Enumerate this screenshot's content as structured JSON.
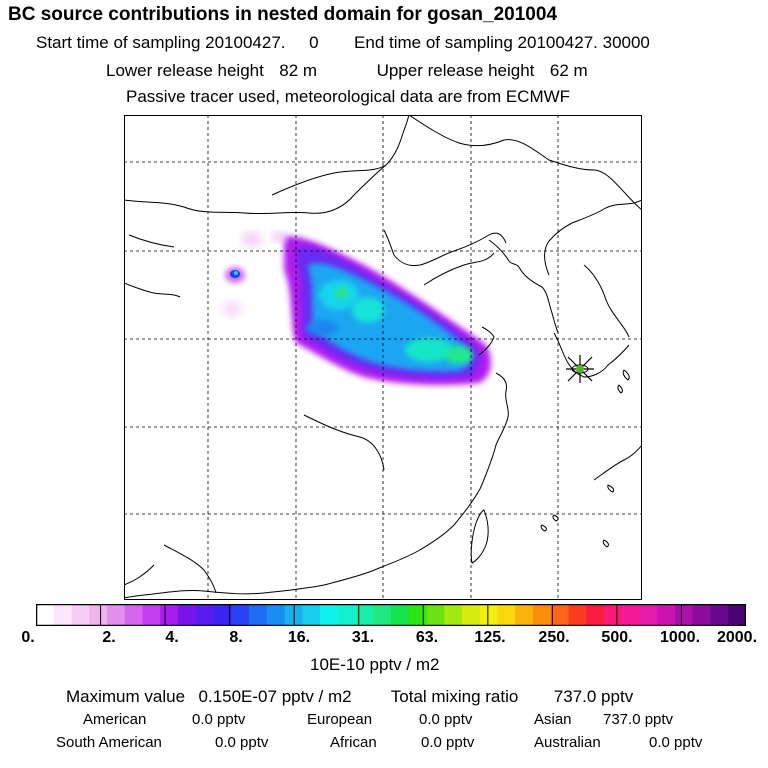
{
  "header": {
    "title": "BC  source contributions in nested domain for gosan_201004",
    "start_label": "Start time of sampling",
    "start_value": "20100427.     0",
    "end_label": "End time of sampling",
    "end_value": "20100427. 30000",
    "lower_label": "Lower release height",
    "lower_value": "82 m",
    "upper_label": "Upper release height",
    "upper_value": "62 m",
    "note": "Passive tracer used, meteorological data are from ECMWF"
  },
  "colorbar": {
    "tick_labels": [
      "0.",
      "2.",
      "4.",
      "8.",
      "16.",
      "31.",
      "63.",
      "125.",
      "250.",
      "500.",
      "1000.",
      "2000."
    ],
    "colors": [
      "#ffffff",
      "#fbe6fb",
      "#f6cdf6",
      "#f0b3f0",
      "#e38fee",
      "#d466ef",
      "#c23ef0",
      "#a71cef",
      "#7a14ec",
      "#5b1af0",
      "#3c24f2",
      "#2a44f4",
      "#1e6cf4",
      "#1a8ef0",
      "#1aaff0",
      "#18cdef",
      "#10f2f0",
      "#14f0cf",
      "#1aeea8",
      "#1ee87e",
      "#14e24a",
      "#2ee414",
      "#6ae410",
      "#a4e810",
      "#d6ec10",
      "#f2ee10",
      "#fad60c",
      "#fcb20c",
      "#fc8c0c",
      "#fc6618",
      "#fc3c20",
      "#fc1c40",
      "#fc1a78",
      "#f41a98",
      "#e41aac",
      "#cc14b0",
      "#aa10a8",
      "#8c0c9c",
      "#6c0890",
      "#4a0470"
    ],
    "units": "10E-10 pptv / m2"
  },
  "summary": {
    "max_label": "Maximum value",
    "max_value": "0.150E-07 pptv / m2",
    "total_label": "Total mixing ratio",
    "total_value": "737.0 pptv",
    "american_label": "American",
    "american_value": "0.0 pptv",
    "european_label": "European",
    "european_value": "0.0 pptv",
    "asian_label": "Asian",
    "asian_value": "737.0 pptv",
    "south_american_label": "South American",
    "south_american_value": "0.0 pptv",
    "african_label": "African",
    "african_value": "0.0 pptv",
    "australian_label": "Australian",
    "australian_value": "0.0 pptv"
  }
}
